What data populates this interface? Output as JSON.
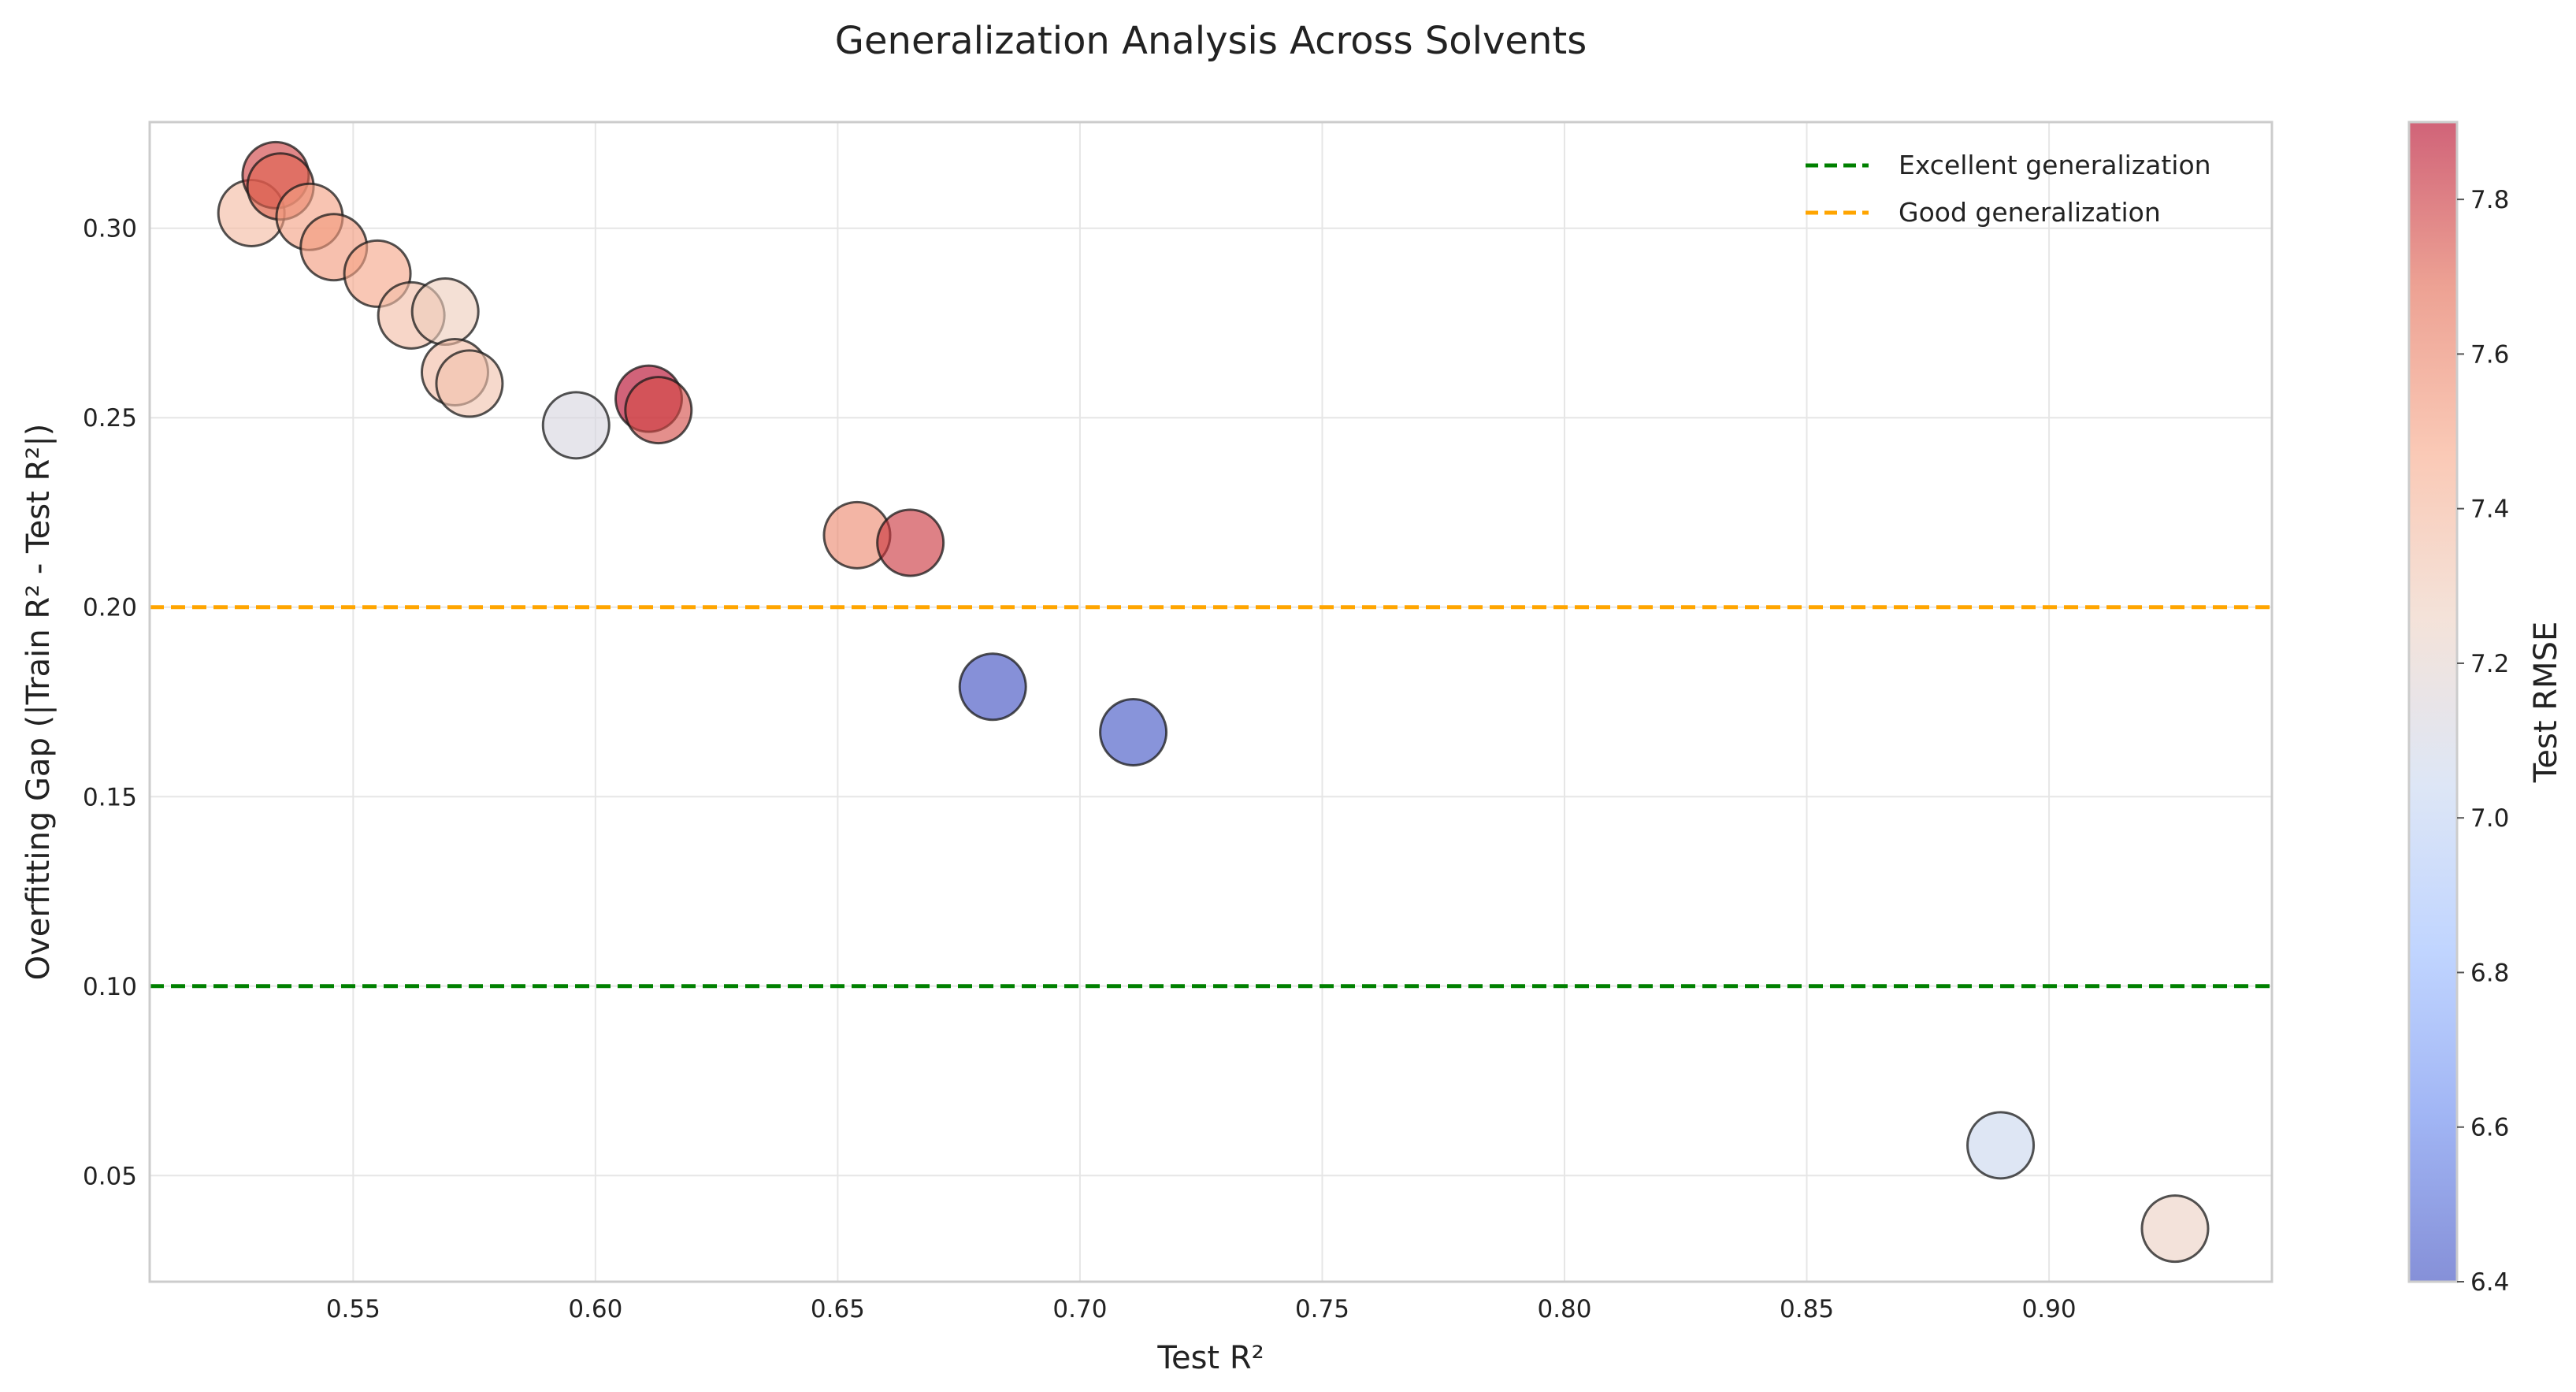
{
  "chart_data": {
    "type": "scatter",
    "title": "Generalization Analysis Across Solvents",
    "xlabel": "Test R²",
    "ylabel": "Overfitting Gap (|Train R² - Test R²|)",
    "xlim": [
      0.508,
      0.946
    ],
    "ylim": [
      0.022,
      0.328
    ],
    "xticks": [
      0.55,
      0.6,
      0.65,
      0.7,
      0.75,
      0.8,
      0.85,
      0.9
    ],
    "xtick_labels": [
      "0.55",
      "0.60",
      "0.65",
      "0.70",
      "0.75",
      "0.80",
      "0.85",
      "0.90"
    ],
    "yticks": [
      0.05,
      0.1,
      0.15,
      0.2,
      0.25,
      0.3
    ],
    "ytick_labels": [
      "0.05",
      "0.10",
      "0.15",
      "0.20",
      "0.25",
      "0.30"
    ],
    "grid": true,
    "legend_position": "upper right",
    "reference_lines": [
      {
        "label": "Excellent generalization",
        "y": 0.1,
        "color": "#008000",
        "style": "dashed"
      },
      {
        "label": "Good generalization",
        "y": 0.2,
        "color": "#FFA500",
        "style": "dashed"
      }
    ],
    "points": [
      {
        "x": 0.529,
        "y": 0.304,
        "rmse": 7.38
      },
      {
        "x": 0.534,
        "y": 0.314,
        "rmse": 7.78
      },
      {
        "x": 0.535,
        "y": 0.311,
        "rmse": 7.7
      },
      {
        "x": 0.541,
        "y": 0.303,
        "rmse": 7.5
      },
      {
        "x": 0.546,
        "y": 0.295,
        "rmse": 7.52
      },
      {
        "x": 0.555,
        "y": 0.288,
        "rmse": 7.48
      },
      {
        "x": 0.562,
        "y": 0.277,
        "rmse": 7.36
      },
      {
        "x": 0.569,
        "y": 0.278,
        "rmse": 7.28
      },
      {
        "x": 0.571,
        "y": 0.262,
        "rmse": 7.37
      },
      {
        "x": 0.574,
        "y": 0.259,
        "rmse": 7.34
      },
      {
        "x": 0.596,
        "y": 0.248,
        "rmse": 7.12
      },
      {
        "x": 0.611,
        "y": 0.255,
        "rmse": 7.9
      },
      {
        "x": 0.613,
        "y": 0.252,
        "rmse": 7.75
      },
      {
        "x": 0.654,
        "y": 0.219,
        "rmse": 7.58
      },
      {
        "x": 0.665,
        "y": 0.217,
        "rmse": 7.8
      },
      {
        "x": 0.682,
        "y": 0.179,
        "rmse": 6.4
      },
      {
        "x": 0.711,
        "y": 0.167,
        "rmse": 6.42
      },
      {
        "x": 0.89,
        "y": 0.058,
        "rmse": 7.05
      },
      {
        "x": 0.926,
        "y": 0.036,
        "rmse": 7.25
      }
    ],
    "colorbar": {
      "label": "Test RMSE",
      "colormap": "coolwarm",
      "vmin": 6.4,
      "vmax": 7.9,
      "ticks": [
        6.4,
        6.6,
        6.8,
        7.0,
        7.2,
        7.4,
        7.6,
        7.8
      ],
      "tick_labels": [
        "6.4",
        "6.6",
        "6.8",
        "7.0",
        "7.2",
        "7.4",
        "7.6",
        "7.8"
      ],
      "stops": [
        "#3b4cc0",
        "#6788ee",
        "#9abbff",
        "#c9d7f0",
        "#edd1c2",
        "#f7a889",
        "#e26952",
        "#b40426"
      ]
    }
  }
}
